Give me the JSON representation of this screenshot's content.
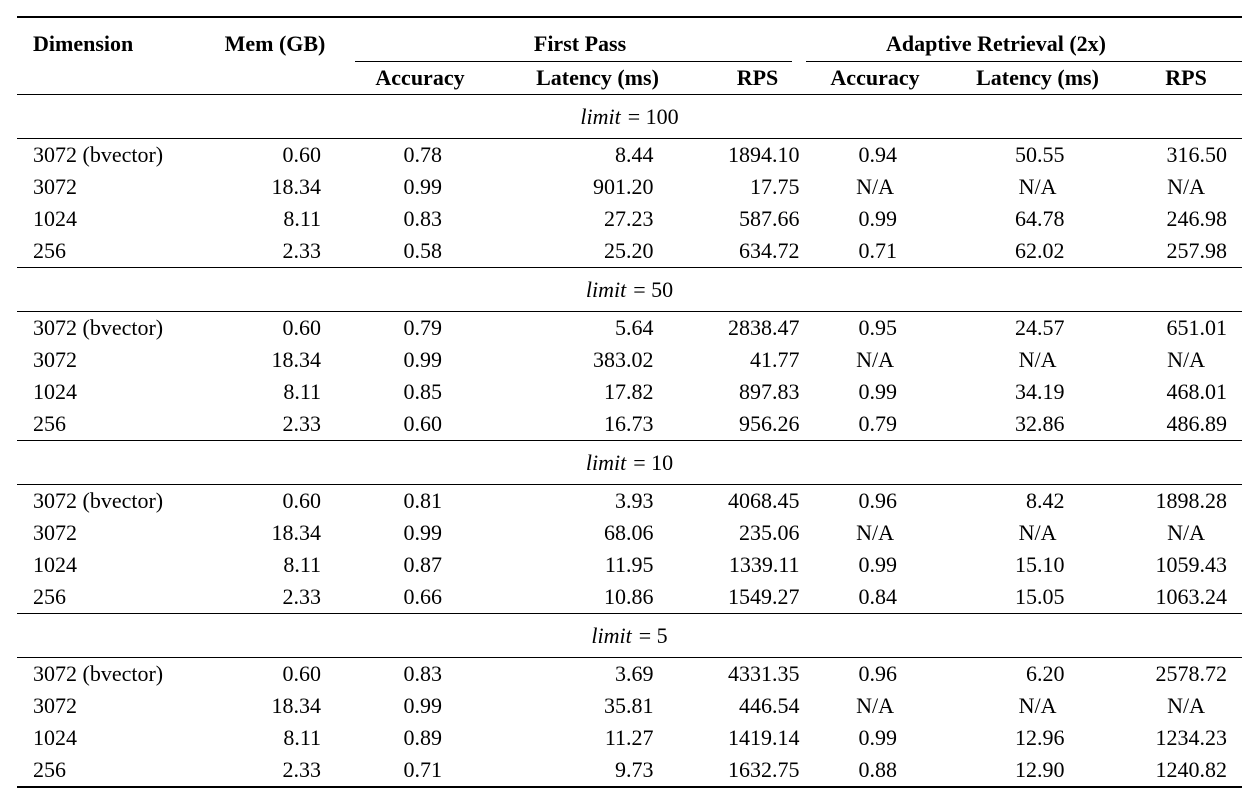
{
  "page": {
    "background": "#ffffff",
    "text_color": "#000000",
    "rule_color": "#000000"
  },
  "table": {
    "columns": [
      "Dimension",
      "Mem (GB)"
    ],
    "groups": [
      {
        "label": "First Pass",
        "subcolumns": [
          "Accuracy",
          "Latency (ms)",
          "RPS"
        ]
      },
      {
        "label": "Adaptive Retrieval (2x)",
        "subcolumns": [
          "Accuracy",
          "Latency (ms)",
          "RPS"
        ]
      }
    ],
    "na_text": "N/A",
    "cell_names": [
      "cell-dimension",
      "cell-mem-gb",
      "cell-first-pass-accuracy",
      "cell-first-pass-latency-ms",
      "cell-first-pass-rps",
      "cell-adaptive-accuracy",
      "cell-adaptive-latency-ms",
      "cell-adaptive-rps"
    ],
    "sections": [
      {
        "heading": {
          "lhs": "limit",
          "rhs": "= 100"
        },
        "rows": [
          {
            "cells": [
              "3072 (bvector)",
              "0.60",
              "0.78",
              "8.44",
              "1894.10",
              "0.94",
              "50.55",
              "316.50"
            ]
          },
          {
            "cells": [
              "3072",
              "18.34",
              "0.99",
              "901.20",
              "17.75",
              "N/A",
              "N/A",
              "N/A"
            ]
          },
          {
            "cells": [
              "1024",
              "8.11",
              "0.83",
              "27.23",
              "587.66",
              "0.99",
              "64.78",
              "246.98"
            ]
          },
          {
            "cells": [
              "256",
              "2.33",
              "0.58",
              "25.20",
              "634.72",
              "0.71",
              "62.02",
              "257.98"
            ]
          }
        ]
      },
      {
        "heading": {
          "lhs": "limit",
          "rhs": "= 50"
        },
        "rows": [
          {
            "cells": [
              "3072 (bvector)",
              "0.60",
              "0.79",
              "5.64",
              "2838.47",
              "0.95",
              "24.57",
              "651.01"
            ]
          },
          {
            "cells": [
              "3072",
              "18.34",
              "0.99",
              "383.02",
              "41.77",
              "N/A",
              "N/A",
              "N/A"
            ]
          },
          {
            "cells": [
              "1024",
              "8.11",
              "0.85",
              "17.82",
              "897.83",
              "0.99",
              "34.19",
              "468.01"
            ]
          },
          {
            "cells": [
              "256",
              "2.33",
              "0.60",
              "16.73",
              "956.26",
              "0.79",
              "32.86",
              "486.89"
            ]
          }
        ]
      },
      {
        "heading": {
          "lhs": "limit",
          "rhs": "= 10"
        },
        "rows": [
          {
            "cells": [
              "3072 (bvector)",
              "0.60",
              "0.81",
              "3.93",
              "4068.45",
              "0.96",
              "8.42",
              "1898.28"
            ]
          },
          {
            "cells": [
              "3072",
              "18.34",
              "0.99",
              "68.06",
              "235.06",
              "N/A",
              "N/A",
              "N/A"
            ]
          },
          {
            "cells": [
              "1024",
              "8.11",
              "0.87",
              "11.95",
              "1339.11",
              "0.99",
              "15.10",
              "1059.43"
            ]
          },
          {
            "cells": [
              "256",
              "2.33",
              "0.66",
              "10.86",
              "1549.27",
              "0.84",
              "15.05",
              "1063.24"
            ]
          }
        ]
      },
      {
        "heading": {
          "lhs": "limit",
          "rhs": "= 5"
        },
        "rows": [
          {
            "cells": [
              "3072 (bvector)",
              "0.60",
              "0.83",
              "3.69",
              "4331.35",
              "0.96",
              "6.20",
              "2578.72"
            ]
          },
          {
            "cells": [
              "3072",
              "18.34",
              "0.99",
              "35.81",
              "446.54",
              "N/A",
              "N/A",
              "N/A"
            ]
          },
          {
            "cells": [
              "1024",
              "8.11",
              "0.89",
              "11.27",
              "1419.14",
              "0.99",
              "12.96",
              "1234.23"
            ]
          },
          {
            "cells": [
              "256",
              "2.33",
              "0.71",
              "9.73",
              "1632.75",
              "0.88",
              "12.90",
              "1240.82"
            ]
          }
        ]
      }
    ]
  }
}
